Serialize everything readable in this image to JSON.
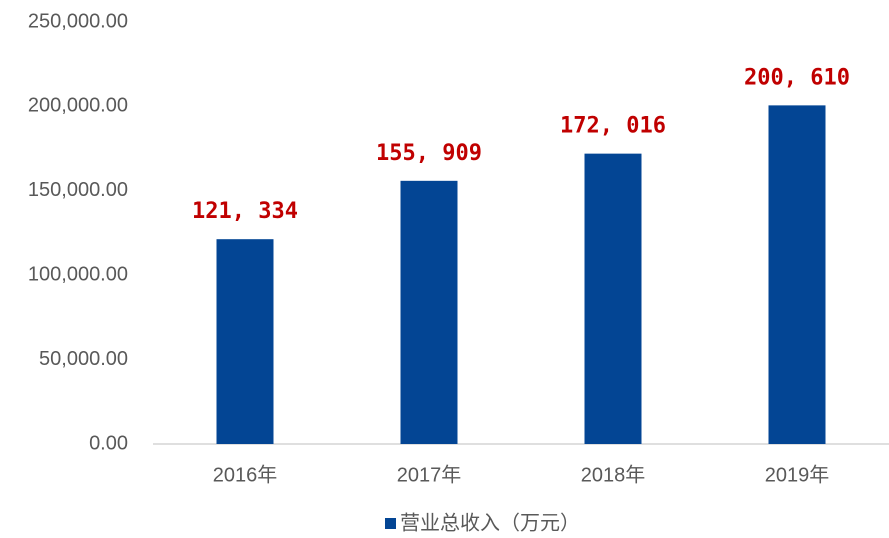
{
  "chart_data": {
    "type": "bar",
    "categories": [
      "2016年",
      "2017年",
      "2018年",
      "2019年"
    ],
    "series": [
      {
        "name": "营业总收入（万元）",
        "color": "#034594",
        "values": [
          121334,
          155909,
          172016,
          200610
        ],
        "value_labels": [
          "121, 334",
          "155, 909",
          "172, 016",
          "200, 610"
        ]
      }
    ],
    "ylim": [
      0,
      250000
    ],
    "yticks": [
      {
        "value": 0,
        "label": "0.00"
      },
      {
        "value": 50000,
        "label": "50,000.00"
      },
      {
        "value": 100000,
        "label": "100,000.00"
      },
      {
        "value": 150000,
        "label": "150,000.00"
      },
      {
        "value": 200000,
        "label": "200,000.00"
      },
      {
        "value": 250000,
        "label": "250,000.00"
      }
    ],
    "grid": false,
    "legend": "bottom",
    "value_label_color": "#c00000"
  }
}
